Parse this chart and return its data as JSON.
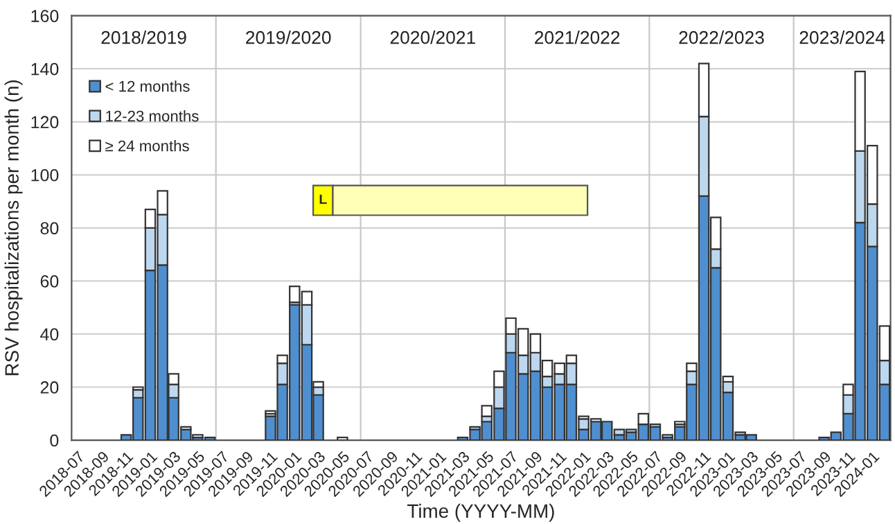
{
  "chart_data": {
    "type": "bar",
    "stacked": true,
    "xlabel": "Time (YYYY-MM)",
    "ylabel": "RSV hospitalizations per month (n)",
    "x": [
      "2018-07",
      "2018-08",
      "2018-09",
      "2018-10",
      "2018-11",
      "2018-12",
      "2019-01",
      "2019-02",
      "2019-03",
      "2019-04",
      "2019-05",
      "2019-06",
      "2019-07",
      "2019-08",
      "2019-09",
      "2019-10",
      "2019-11",
      "2019-12",
      "2020-01",
      "2020-02",
      "2020-03",
      "2020-04",
      "2020-05",
      "2020-06",
      "2020-07",
      "2020-08",
      "2020-09",
      "2020-10",
      "2020-11",
      "2020-12",
      "2021-01",
      "2021-02",
      "2021-03",
      "2021-04",
      "2021-05",
      "2021-06",
      "2021-07",
      "2021-08",
      "2021-09",
      "2021-10",
      "2021-11",
      "2021-12",
      "2022-01",
      "2022-02",
      "2022-03",
      "2022-04",
      "2022-05",
      "2022-06",
      "2022-07",
      "2022-08",
      "2022-09",
      "2022-10",
      "2022-11",
      "2022-12",
      "2023-01",
      "2023-02",
      "2023-03",
      "2023-04",
      "2023-05",
      "2023-06",
      "2023-07",
      "2023-08",
      "2023-09",
      "2023-10",
      "2023-11",
      "2023-12",
      "2024-01",
      "2024-02"
    ],
    "series": [
      {
        "name": "< 12 months",
        "color": "#4f8fcf",
        "values": [
          0,
          0,
          0,
          0,
          2,
          16,
          64,
          66,
          16,
          4,
          1,
          1,
          0,
          0,
          0,
          0,
          9,
          21,
          51,
          36,
          17,
          0,
          0,
          0,
          0,
          0,
          0,
          0,
          0,
          0,
          0,
          0,
          1,
          4,
          7,
          12,
          33,
          25,
          26,
          20,
          21,
          21,
          4,
          7,
          7,
          2,
          3,
          6,
          5,
          1,
          5,
          21,
          92,
          65,
          18,
          2,
          2,
          0,
          0,
          0,
          0,
          0,
          1,
          3,
          10,
          82,
          73,
          21
        ]
      },
      {
        "name": "12-23 months",
        "color": "#bdd7ee",
        "values": [
          0,
          0,
          0,
          0,
          0,
          3,
          16,
          19,
          5,
          0,
          0,
          0,
          0,
          0,
          0,
          0,
          1,
          8,
          1,
          15,
          3,
          0,
          0,
          0,
          0,
          0,
          0,
          0,
          0,
          0,
          0,
          0,
          0,
          1,
          2,
          8,
          7,
          7,
          7,
          4,
          4,
          8,
          4,
          0,
          0,
          2,
          1,
          0,
          1,
          1,
          1,
          5,
          30,
          7,
          4,
          1,
          0,
          0,
          0,
          0,
          0,
          0,
          0,
          0,
          7,
          27,
          16,
          9
        ]
      },
      {
        "name": "≥ 24 months",
        "color": "#ffffff",
        "values": [
          0,
          0,
          0,
          0,
          0,
          1,
          7,
          9,
          4,
          1,
          1,
          0,
          0,
          0,
          0,
          0,
          1,
          3,
          6,
          5,
          2,
          0,
          1,
          0,
          0,
          0,
          0,
          0,
          0,
          0,
          0,
          0,
          0,
          0,
          4,
          6,
          6,
          10,
          7,
          6,
          4,
          3,
          1,
          1,
          0,
          0,
          0,
          4,
          0,
          0,
          1,
          3,
          20,
          12,
          2,
          0,
          0,
          0,
          0,
          0,
          0,
          0,
          0,
          0,
          4,
          30,
          22,
          13
        ]
      }
    ],
    "xlim": [
      "2018-06-16",
      "2024-02-16"
    ],
    "xticks": [
      "2018-07",
      "2018-09",
      "2018-11",
      "2019-01",
      "2019-03",
      "2019-05",
      "2019-07",
      "2019-09",
      "2019-11",
      "2020-01",
      "2020-03",
      "2020-05",
      "2020-07",
      "2020-09",
      "2020-11",
      "2021-01",
      "2021-03",
      "2021-05",
      "2021-07",
      "2021-09",
      "2021-11",
      "2022-01",
      "2022-03",
      "2022-05",
      "2022-07",
      "2022-09",
      "2022-11",
      "2023-01",
      "2023-03",
      "2023-05",
      "2023-07",
      "2023-09",
      "2023-11",
      "2024-01"
    ],
    "ylim": [
      0,
      160
    ],
    "yticks": [
      0,
      20,
      40,
      60,
      80,
      100,
      120,
      140,
      160
    ],
    "ref_lines": [
      {
        "axis": "x",
        "value": "2019-06-16"
      },
      {
        "axis": "x",
        "value": "2020-06-16"
      },
      {
        "axis": "x",
        "value": "2021-06-16"
      },
      {
        "axis": "x",
        "value": "2022-06-16"
      },
      {
        "axis": "x",
        "value": "2023-06-16"
      }
    ],
    "annotations": [
      "2018/2019",
      "2019/2020",
      "2020/2021",
      "2021/2022",
      "2022/2023",
      "2023/2024",
      "L"
    ],
    "grid": "y",
    "legend": "top left"
  }
}
